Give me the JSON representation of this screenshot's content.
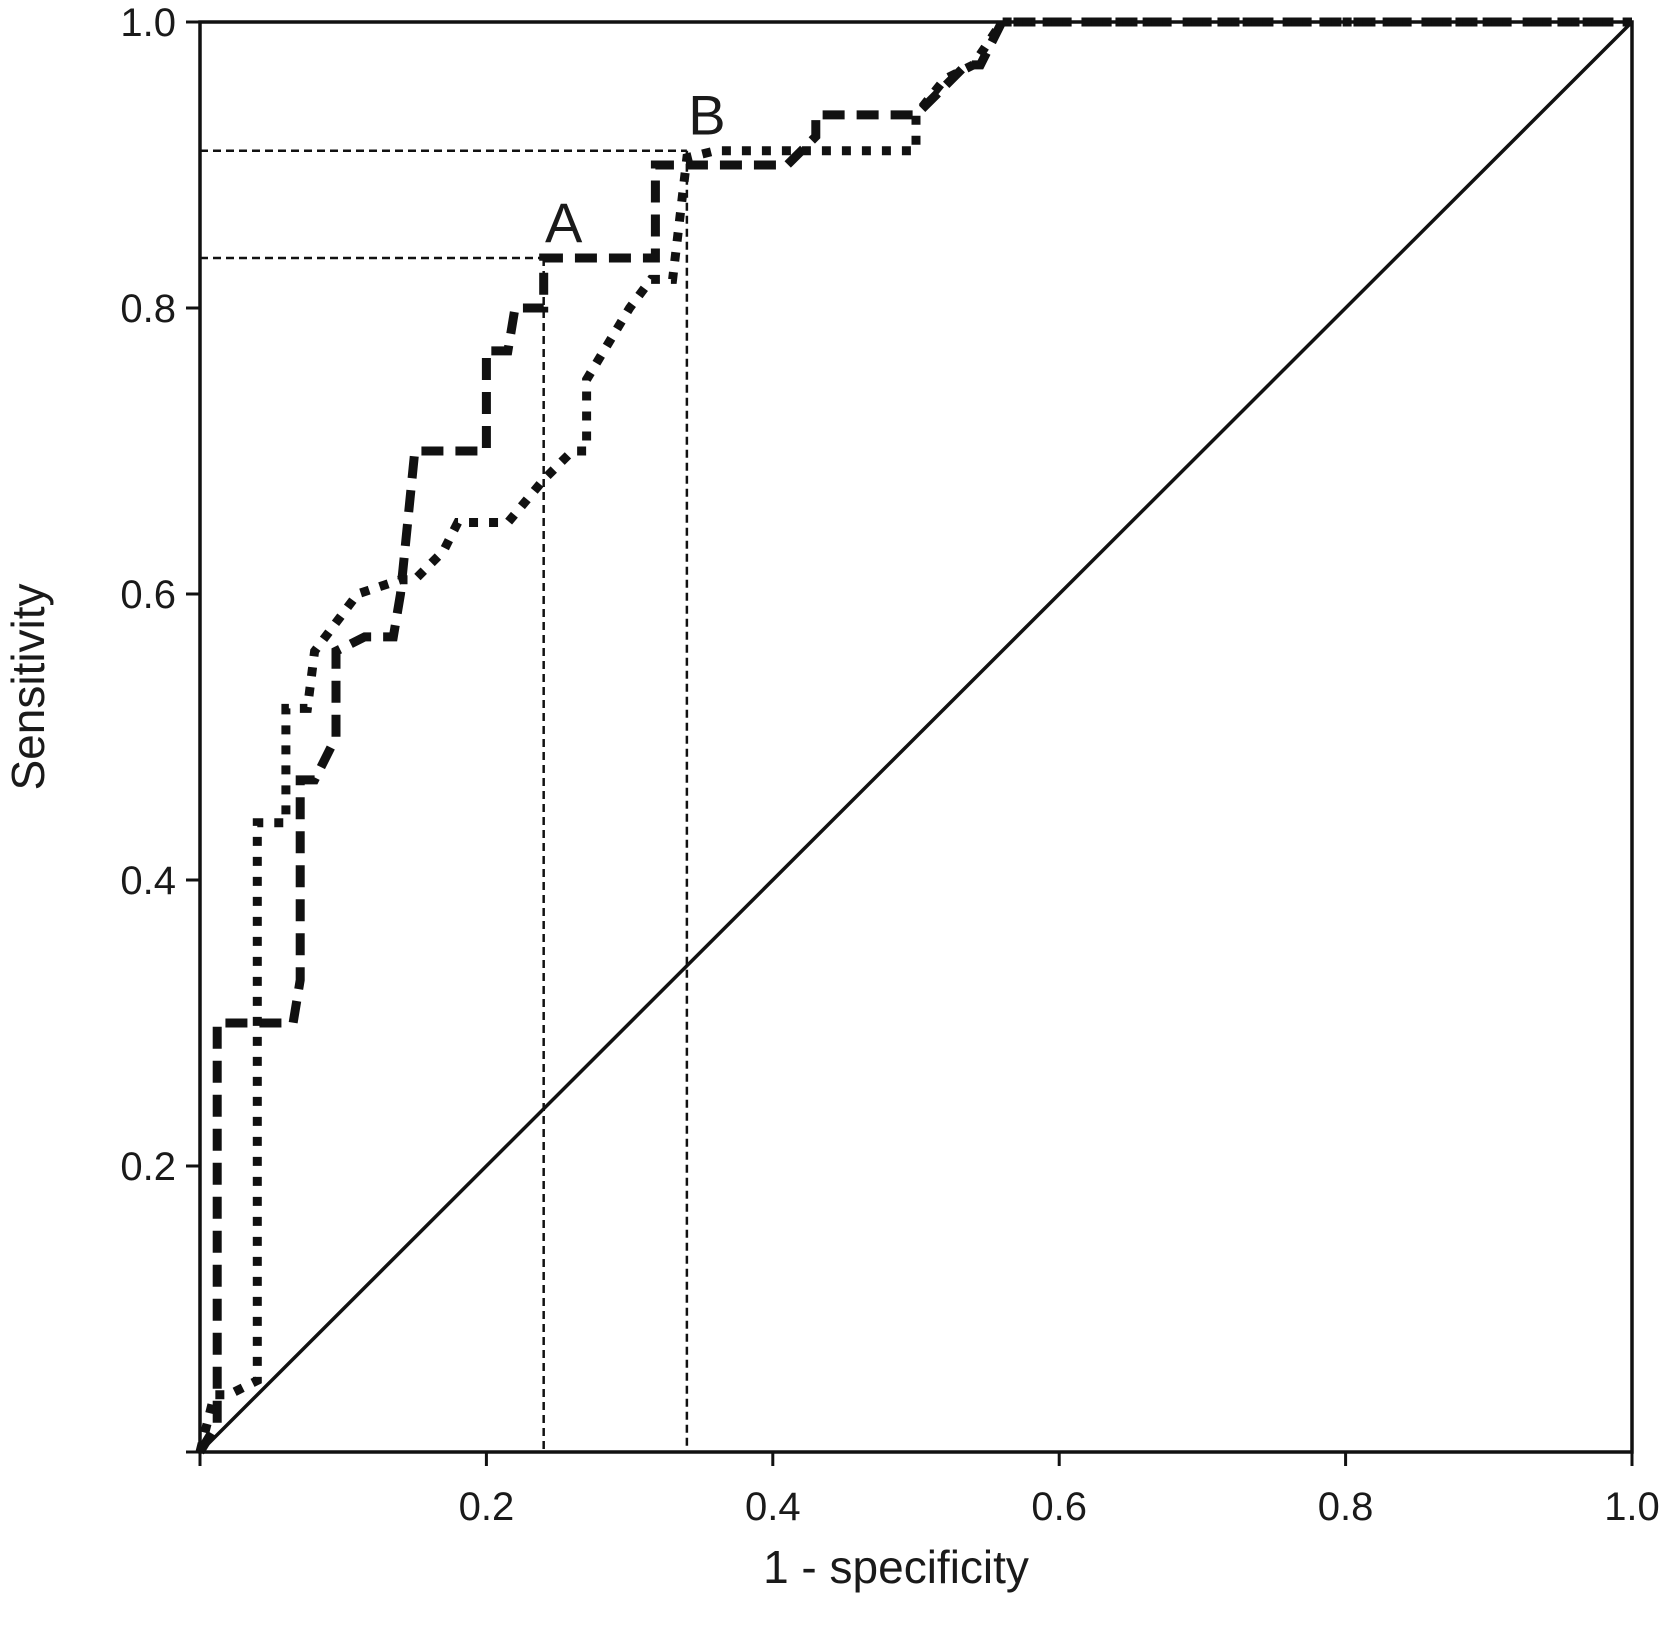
{
  "chart_data": {
    "type": "line",
    "title": "",
    "xlabel": "1 - specificity",
    "ylabel": "Sensitivity",
    "xlim": [
      0,
      1
    ],
    "ylim": [
      0,
      1
    ],
    "x_ticks": [
      "0.2",
      "0.4",
      "0.6",
      "0.8",
      "1.0"
    ],
    "x_tick_values": [
      0.2,
      0.4,
      0.6,
      0.8,
      1.0
    ],
    "y_ticks": [
      "0.2",
      "0.4",
      "0.6",
      "0.8",
      "1.0"
    ],
    "y_tick_values": [
      0.2,
      0.4,
      0.6,
      0.8,
      1.0
    ],
    "grid": false,
    "legend": "none",
    "series": [
      {
        "style": "dashed",
        "x": [
          0,
          0.012,
          0.012,
          0.04,
          0.065,
          0.07,
          0.07,
          0.08,
          0.095,
          0.095,
          0.115,
          0.135,
          0.14,
          0.15,
          0.2,
          0.2,
          0.215,
          0.22,
          0.22,
          0.24,
          0.24,
          0.318,
          0.318,
          0.41,
          0.43,
          0.43,
          0.5,
          0.515,
          0.535,
          0.545,
          0.56,
          1.0
        ],
        "y": [
          0,
          0.02,
          0.3,
          0.3,
          0.3,
          0.33,
          0.47,
          0.47,
          0.5,
          0.56,
          0.57,
          0.57,
          0.6,
          0.7,
          0.7,
          0.77,
          0.77,
          0.8,
          0.8,
          0.8,
          0.835,
          0.835,
          0.9,
          0.9,
          0.92,
          0.935,
          0.935,
          0.95,
          0.97,
          0.97,
          1.0,
          1.0
        ]
      },
      {
        "style": "dotted",
        "x": [
          0,
          0.01,
          0.02,
          0.04,
          0.04,
          0.06,
          0.06,
          0.075,
          0.08,
          0.11,
          0.14,
          0.15,
          0.17,
          0.18,
          0.215,
          0.24,
          0.26,
          0.27,
          0.27,
          0.3,
          0.315,
          0.33,
          0.34,
          0.36,
          0.38,
          0.4,
          0.5,
          0.5,
          0.52,
          0.54,
          0.56,
          1.0
        ],
        "y": [
          0,
          0.04,
          0.04,
          0.05,
          0.44,
          0.44,
          0.52,
          0.52,
          0.56,
          0.6,
          0.61,
          0.61,
          0.63,
          0.65,
          0.65,
          0.68,
          0.7,
          0.7,
          0.75,
          0.8,
          0.82,
          0.82,
          0.905,
          0.91,
          0.91,
          0.91,
          0.91,
          0.935,
          0.96,
          0.97,
          1.0,
          1.0
        ]
      },
      {
        "style": "solid",
        "x": [
          0,
          1
        ],
        "y": [
          0,
          1
        ]
      }
    ],
    "annotations": [
      {
        "label": "A",
        "x": 0.24,
        "y": 0.835
      },
      {
        "label": "B",
        "x": 0.34,
        "y": 0.91
      }
    ]
  }
}
